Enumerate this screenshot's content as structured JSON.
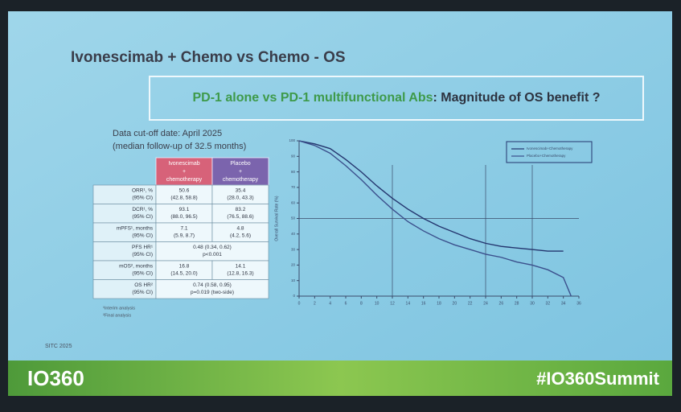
{
  "slide": {
    "title": "Ivonescimab + Chemo vs Chemo - OS",
    "banner": {
      "highlight": "PD-1 alone vs PD-1 multifunctional Abs",
      "rest": ": Magnitude of OS benefit ?"
    },
    "cutoff": [
      "Data cut-off date: April 2025",
      "(median follow-up of 32.5 months)"
    ],
    "notes": [
      "¹Interim analysis",
      "²Final analysis"
    ],
    "footer": "SITC 2025",
    "logo": "IO360",
    "hashtag": "#IO360Summit"
  },
  "table": {
    "header": [
      [
        "Ivonescimab",
        "+",
        "chemotherapy"
      ],
      [
        "Placebo",
        "+",
        "chemotherapy"
      ]
    ],
    "rows": [
      {
        "label": [
          "ORR¹, %",
          "(95% CI)"
        ],
        "cells": [
          [
            "50.6",
            "(42.8, 58.8)"
          ],
          [
            "35.4",
            "(28.0, 43.3)"
          ]
        ]
      },
      {
        "label": [
          "DCR¹, %",
          "(95% CI)"
        ],
        "cells": [
          [
            "93.1",
            "(88.0, 96.5)"
          ],
          [
            "83.2",
            "(76.5, 88.6)"
          ]
        ]
      },
      {
        "label": [
          "mPFS¹, months",
          "(95% CI)"
        ],
        "cells": [
          [
            "7.1",
            "(5.9, 8.7)"
          ],
          [
            "4.8",
            "(4.2, 5.6)"
          ]
        ]
      },
      {
        "label": [
          "PFS HR¹",
          "(95% CI)"
        ],
        "merged": [
          "0.48 (0.34, 0.62)",
          "p<0.001"
        ]
      },
      {
        "label": [
          "mOS², months",
          "(95% CI)"
        ],
        "cells": [
          [
            "16.8",
            "(14.5, 20.0)"
          ],
          [
            "14.1",
            "(12.8, 16.3)"
          ]
        ]
      },
      {
        "label": [
          "OS HR²",
          "(95% CI)"
        ],
        "merged": [
          "0.74 (0.58, 0.95)",
          "p=0.019 (two-side)"
        ]
      }
    ]
  },
  "chart_data": {
    "type": "line",
    "y_label": "Overall Survival Rate (%)",
    "x": [
      0,
      2,
      4,
      6,
      8,
      10,
      12,
      14,
      16,
      18,
      20,
      22,
      24,
      26,
      28,
      30,
      32,
      34,
      35
    ],
    "series": [
      {
        "name": "Ivonescimab+Chemotherapy",
        "color": "#24356e",
        "values": [
          100,
          98,
          95,
          88,
          80,
          71,
          63,
          56,
          50,
          45,
          41,
          37,
          34,
          32,
          31,
          30,
          29,
          29,
          null
        ]
      },
      {
        "name": "Placebo+Chemotherapy",
        "color": "#3b4f8c",
        "values": [
          100,
          97,
          92,
          84,
          75,
          65,
          56,
          48,
          42,
          37,
          33,
          30,
          27,
          25,
          22,
          20,
          17,
          12,
          0
        ]
      }
    ],
    "xlim": [
      0,
      36
    ],
    "ylim": [
      0,
      100
    ],
    "xticks": [
      0,
      2,
      4,
      6,
      8,
      10,
      12,
      14,
      16,
      18,
      20,
      22,
      24,
      26,
      28,
      30,
      32,
      34,
      36
    ],
    "yticks": [
      0,
      10,
      20,
      30,
      40,
      50,
      60,
      70,
      80,
      90,
      100
    ],
    "reference_x": [
      12,
      24,
      30
    ],
    "reference_y": 50
  }
}
